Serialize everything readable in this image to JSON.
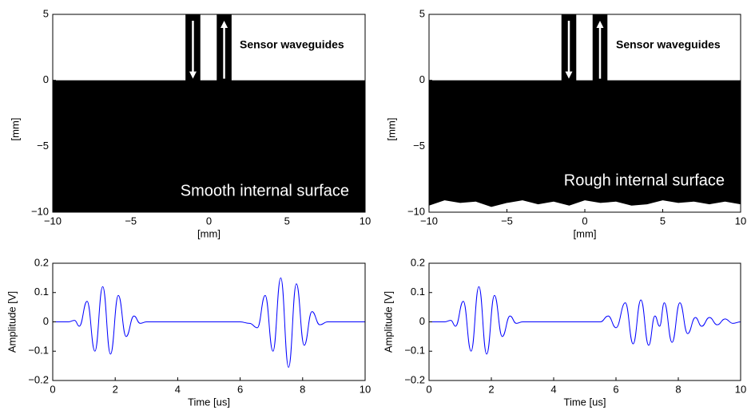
{
  "chart_data": [
    {
      "type": "geometry",
      "xlabel": "[mm]",
      "ylabel": "[mm]",
      "xlim": [
        -10,
        10
      ],
      "ylim": [
        -10,
        5
      ],
      "xticks": [
        {
          "value": -10,
          "label": "−10"
        },
        {
          "value": -5,
          "label": "−5"
        },
        0,
        5,
        10
      ],
      "yticks": [
        {
          "value": -10,
          "label": "−10"
        },
        {
          "value": -5,
          "label": "−5"
        },
        0,
        5
      ],
      "color": "#000000",
      "body_top": 0,
      "waveguide_top": 5,
      "waveguides": [
        [
          -1.5,
          -0.55
        ],
        [
          0.5,
          1.45
        ]
      ],
      "surface": {
        "x": [
          -10,
          10
        ],
        "y": [
          -10,
          -10
        ]
      },
      "waveguide_label": "Sensor waveguides",
      "surface_label": "Smooth internal surface"
    },
    {
      "type": "geometry",
      "xlabel": "[mm]",
      "ylabel": "[mm]",
      "xlim": [
        -10,
        10
      ],
      "ylim": [
        -10,
        5
      ],
      "xticks": [
        {
          "value": -10,
          "label": "−10"
        },
        {
          "value": -5,
          "label": "−5"
        },
        0,
        5,
        10
      ],
      "yticks": [
        {
          "value": -10,
          "label": "−10"
        },
        {
          "value": -5,
          "label": "−5"
        },
        0,
        5
      ],
      "color": "#000000",
      "body_top": 0,
      "waveguide_top": 5,
      "waveguides": [
        [
          -1.5,
          -0.55
        ],
        [
          0.5,
          1.45
        ]
      ],
      "surface": {
        "x": [
          -10,
          -9,
          -8,
          -7,
          -6,
          -5,
          -4,
          -3,
          -2,
          -1,
          0,
          1,
          2,
          3,
          4,
          5,
          6,
          7,
          8,
          9,
          10
        ],
        "y": [
          -9.5,
          -9.1,
          -9.3,
          -9.2,
          -9.6,
          -9.3,
          -9.1,
          -9.4,
          -9.2,
          -9.5,
          -9.1,
          -9.3,
          -9.2,
          -9.5,
          -9.4,
          -9.1,
          -9.3,
          -9.2,
          -9.4,
          -9.2,
          -9.4
        ]
      },
      "waveguide_label": "Sensor waveguides",
      "surface_label": "Rough internal surface"
    },
    {
      "type": "line",
      "xlabel": "Time [us]",
      "ylabel": "Amplitude [V]",
      "xlim": [
        0,
        10
      ],
      "ylim": [
        -0.2,
        0.2
      ],
      "xticks": [
        0,
        2,
        4,
        6,
        8,
        10
      ],
      "yticks": [
        {
          "value": -0.2,
          "label": "−0.2"
        },
        {
          "value": -0.1,
          "label": "−0.1"
        },
        0,
        0.1,
        0.2
      ],
      "color": "#0000ff",
      "x": [
        0,
        0.5,
        0.7,
        0.85,
        1.1,
        1.35,
        1.6,
        1.85,
        2.1,
        2.35,
        2.6,
        2.8,
        3.0,
        6.0,
        6.3,
        6.55,
        6.8,
        7.05,
        7.3,
        7.55,
        7.8,
        8.05,
        8.3,
        8.55,
        8.8,
        10
      ],
      "values": [
        0,
        0,
        0.005,
        -0.015,
        0.07,
        -0.1,
        0.12,
        -0.11,
        0.09,
        -0.05,
        0.02,
        -0.005,
        0,
        0,
        -0.005,
        -0.02,
        0.09,
        -0.1,
        0.15,
        -0.155,
        0.13,
        -0.08,
        0.035,
        -0.01,
        0,
        0
      ]
    },
    {
      "type": "line",
      "xlabel": "Time [us]",
      "ylabel": "Amplitude [V]",
      "xlim": [
        0,
        10
      ],
      "ylim": [
        -0.2,
        0.2
      ],
      "xticks": [
        0,
        2,
        4,
        6,
        8,
        10
      ],
      "yticks": [
        {
          "value": -0.2,
          "label": "−0.2"
        },
        {
          "value": -0.1,
          "label": "−0.1"
        },
        0,
        0.1,
        0.2
      ],
      "color": "#0000ff",
      "x": [
        0,
        0.5,
        0.7,
        0.85,
        1.1,
        1.35,
        1.6,
        1.85,
        2.1,
        2.35,
        2.6,
        2.8,
        3.0,
        5.5,
        5.75,
        6.0,
        6.3,
        6.55,
        6.8,
        7.05,
        7.25,
        7.4,
        7.55,
        7.8,
        8.05,
        8.3,
        8.55,
        8.75,
        9.0,
        9.25,
        9.5,
        9.75,
        10
      ],
      "values": [
        0,
        0,
        0.005,
        -0.015,
        0.07,
        -0.1,
        0.12,
        -0.11,
        0.09,
        -0.05,
        0.02,
        -0.005,
        0,
        0,
        0.02,
        -0.02,
        0.065,
        -0.075,
        0.075,
        -0.08,
        0.02,
        -0.015,
        0.065,
        -0.07,
        0.065,
        -0.04,
        0.015,
        -0.015,
        0.015,
        -0.01,
        0.01,
        -0.005,
        0
      ]
    }
  ]
}
